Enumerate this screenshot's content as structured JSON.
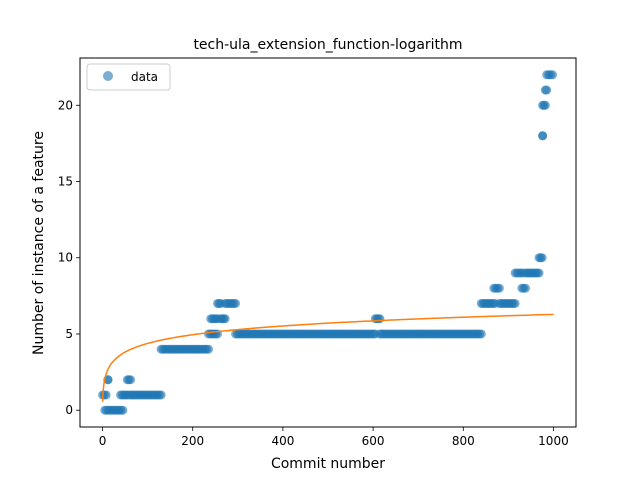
{
  "chart_data": {
    "type": "scatter",
    "title": "tech-ula_extension_function-logarithm",
    "xlabel": "Commit number",
    "ylabel": "Number of instance of a feature",
    "xlim": [
      -50,
      1050
    ],
    "ylim": [
      -1.1,
      23.1
    ],
    "xticks": [
      0,
      200,
      400,
      600,
      800,
      1000
    ],
    "yticks": [
      0,
      5,
      10,
      15,
      20
    ],
    "grid": false,
    "legend": {
      "position": "top-left",
      "entries": [
        "data"
      ]
    },
    "colors": {
      "points": "#1f77b4",
      "fit": "#ff7f0e"
    },
    "series": [
      {
        "name": "data",
        "kind": "points",
        "segments": [
          {
            "x0": 0,
            "x1": 8,
            "y": 1
          },
          {
            "x0": 5,
            "x1": 45,
            "y": 0
          },
          {
            "x0": 12,
            "x1": 12,
            "y": 2
          },
          {
            "x0": 40,
            "x1": 55,
            "y": 1
          },
          {
            "x0": 55,
            "x1": 62,
            "y": 2
          },
          {
            "x0": 60,
            "x1": 130,
            "y": 1
          },
          {
            "x0": 130,
            "x1": 235,
            "y": 4
          },
          {
            "x0": 235,
            "x1": 255,
            "y": 5
          },
          {
            "x0": 240,
            "x1": 255,
            "y": 6
          },
          {
            "x0": 255,
            "x1": 262,
            "y": 7
          },
          {
            "x0": 262,
            "x1": 272,
            "y": 6
          },
          {
            "x0": 272,
            "x1": 295,
            "y": 7
          },
          {
            "x0": 295,
            "x1": 605,
            "y": 5
          },
          {
            "x0": 605,
            "x1": 615,
            "y": 6
          },
          {
            "x0": 615,
            "x1": 840,
            "y": 5
          },
          {
            "x0": 840,
            "x1": 870,
            "y": 7
          },
          {
            "x0": 868,
            "x1": 880,
            "y": 8
          },
          {
            "x0": 880,
            "x1": 915,
            "y": 7
          },
          {
            "x0": 915,
            "x1": 932,
            "y": 9
          },
          {
            "x0": 930,
            "x1": 938,
            "y": 8
          },
          {
            "x0": 938,
            "x1": 968,
            "y": 9
          },
          {
            "x0": 968,
            "x1": 975,
            "y": 10
          },
          {
            "x0": 976,
            "x1": 976,
            "y": 18
          },
          {
            "x0": 976,
            "x1": 982,
            "y": 20
          },
          {
            "x0": 982,
            "x1": 985,
            "y": 21
          },
          {
            "x0": 985,
            "x1": 998,
            "y": 22
          }
        ]
      },
      {
        "name": "",
        "kind": "fit-line",
        "formula": "y = 0.83 * ln(x + 1) + 0.55",
        "x_range": [
          0,
          1000
        ]
      }
    ]
  }
}
